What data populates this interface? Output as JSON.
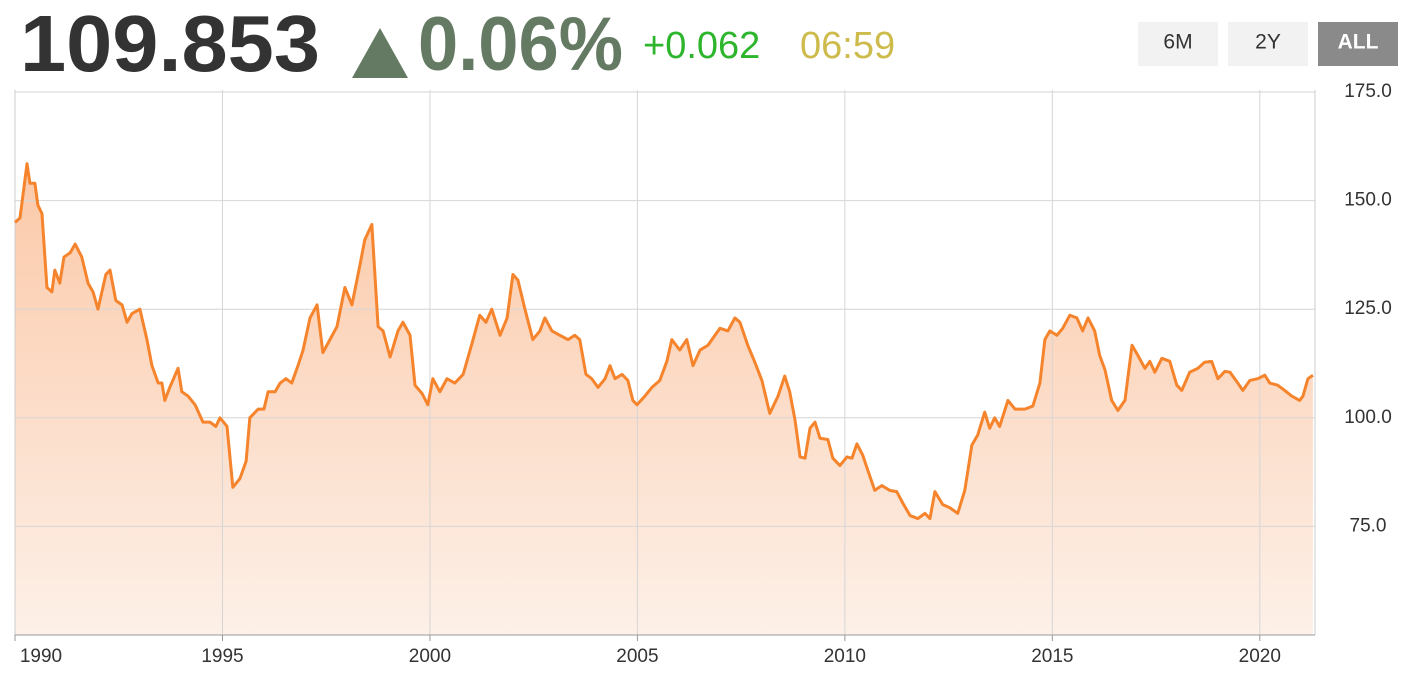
{
  "header": {
    "price": "109.853",
    "change_percent": "0.06%",
    "change": "+0.062",
    "time": "06:59",
    "range_buttons": [
      "6M",
      "2Y",
      "ALL"
    ],
    "active_button": "ALL"
  },
  "chart_data": {
    "type": "line",
    "color": "#f5842c",
    "x": [
      1990.0,
      1990.12,
      1990.29,
      1990.36,
      1990.48,
      1990.55,
      1990.65,
      1990.77,
      1990.89,
      1990.96,
      1991.08,
      1991.18,
      1991.33,
      1991.45,
      1991.61,
      1991.76,
      1991.88,
      1992.0,
      1992.19,
      1992.29,
      1992.43,
      1992.58,
      1992.7,
      1992.82,
      1993.01,
      1993.18,
      1993.3,
      1993.45,
      1993.54,
      1993.61,
      1993.73,
      1993.93,
      1994.02,
      1994.17,
      1994.34,
      1994.53,
      1994.7,
      1994.84,
      1994.94,
      1995.11,
      1995.25,
      1995.42,
      1995.57,
      1995.66,
      1995.86,
      1996.0,
      1996.1,
      1996.27,
      1996.39,
      1996.53,
      1996.67,
      1996.82,
      1996.94,
      1997.11,
      1997.28,
      1997.42,
      1997.59,
      1997.76,
      1997.95,
      1998.12,
      1998.31,
      1998.43,
      1998.6,
      1998.75,
      1998.87,
      1999.04,
      1999.23,
      1999.35,
      1999.52,
      1999.64,
      1999.81,
      1999.95,
      2000.07,
      2000.24,
      2000.41,
      2000.6,
      2000.8,
      2001.01,
      2001.2,
      2001.35,
      2001.49,
      2001.69,
      2001.86,
      2002.0,
      2002.12,
      2002.29,
      2002.48,
      2002.65,
      2002.77,
      2002.94,
      2003.13,
      2003.33,
      2003.49,
      2003.61,
      2003.76,
      2003.9,
      2004.05,
      2004.22,
      2004.34,
      2004.46,
      2004.63,
      2004.77,
      2004.89,
      2004.99,
      2005.18,
      2005.35,
      2005.54,
      2005.71,
      2005.83,
      2006.02,
      2006.19,
      2006.34,
      2006.51,
      2006.7,
      2006.87,
      2006.99,
      2007.18,
      2007.35,
      2007.47,
      2007.66,
      2007.83,
      2008.0,
      2008.19,
      2008.39,
      2008.55,
      2008.67,
      2008.8,
      2008.92,
      2009.04,
      2009.16,
      2009.28,
      2009.4,
      2009.59,
      2009.71,
      2009.88,
      2010.05,
      2010.17,
      2010.29,
      2010.43,
      2010.55,
      2010.72,
      2010.89,
      2011.08,
      2011.25,
      2011.4,
      2011.57,
      2011.76,
      2011.93,
      2012.05,
      2012.17,
      2012.36,
      2012.53,
      2012.72,
      2012.89,
      2013.06,
      2013.2,
      2013.37,
      2013.49,
      2013.61,
      2013.73,
      2013.93,
      2014.1,
      2014.34,
      2014.53,
      2014.7,
      2014.82,
      2014.94,
      2015.11,
      2015.25,
      2015.42,
      2015.59,
      2015.73,
      2015.86,
      2016.02,
      2016.14,
      2016.27,
      2016.43,
      2016.58,
      2016.75,
      2016.92,
      2017.06,
      2017.23,
      2017.35,
      2017.47,
      2017.64,
      2017.83,
      2018.0,
      2018.12,
      2018.31,
      2018.51,
      2018.67,
      2018.84,
      2018.99,
      2019.16,
      2019.28,
      2019.47,
      2019.59,
      2019.76,
      2019.95,
      2020.12,
      2020.24,
      2020.43,
      2020.6,
      2020.77,
      2020.96,
      2021.04,
      2021.16,
      2021.28
    ],
    "values": [
      145,
      146,
      158.5,
      154,
      154,
      149,
      147,
      130,
      129,
      134,
      131,
      137,
      138,
      140,
      137,
      131,
      129,
      125,
      133,
      134,
      127,
      126,
      122,
      124,
      125,
      118,
      112,
      108,
      108,
      104,
      107,
      111.4,
      106,
      105,
      103,
      99,
      99,
      98,
      100,
      98,
      84,
      86,
      90,
      100,
      102,
      102,
      106,
      106,
      108,
      109,
      108,
      112,
      115.5,
      123,
      126,
      115,
      118,
      121,
      130,
      126,
      135,
      141,
      144.5,
      121,
      120,
      114,
      120,
      122,
      119,
      107.5,
      105.6,
      103,
      109,
      106,
      109,
      108,
      110,
      117,
      123.6,
      122,
      125,
      119,
      123,
      133,
      131.7,
      125,
      118,
      120,
      123,
      120,
      119,
      118,
      119,
      118,
      110,
      109,
      107,
      109,
      112,
      109,
      110,
      108.6,
      104,
      103,
      105,
      107,
      108.6,
      113,
      118,
      115.6,
      118,
      112,
      115.6,
      116.7,
      119,
      120.6,
      120,
      123,
      122,
      116.7,
      112.8,
      108.6,
      101,
      105,
      109.6,
      106,
      99.4,
      91,
      90.7,
      97.6,
      99,
      95.3,
      95,
      90.7,
      89,
      91,
      90.7,
      94,
      91.4,
      88,
      83.3,
      84.4,
      83.3,
      83,
      80.3,
      77.5,
      76.8,
      78,
      76.8,
      83,
      80,
      79.3,
      78,
      83.3,
      93.7,
      96,
      101.3,
      97.6,
      100,
      98,
      104,
      102,
      102,
      102.7,
      108,
      118,
      120,
      119,
      120.6,
      123.6,
      123,
      120,
      123,
      120,
      114.4,
      111,
      104,
      101.7,
      104,
      116.7,
      114.4,
      111.4,
      113,
      110.5,
      113.7,
      113,
      107.5,
      106.3,
      110.5,
      111.4,
      112.8,
      113,
      109,
      110.7,
      110.5,
      108,
      106.3,
      108.6,
      109,
      109.8,
      108,
      107.5,
      106.3,
      105,
      104,
      105,
      109,
      109.8
    ],
    "xlim": [
      1990,
      2021.33
    ],
    "ylim": [
      50,
      175
    ],
    "xticks": [
      1990,
      1995,
      2000,
      2005,
      2010,
      2015,
      2020
    ],
    "yticks": [
      {
        "value": 75,
        "label": "75.0"
      },
      {
        "value": 100,
        "label": "100.0"
      },
      {
        "value": 125,
        "label": "125.0"
      },
      {
        "value": 150,
        "label": "150.0"
      },
      {
        "value": 175,
        "label": "175.0"
      }
    ],
    "grid": true
  }
}
